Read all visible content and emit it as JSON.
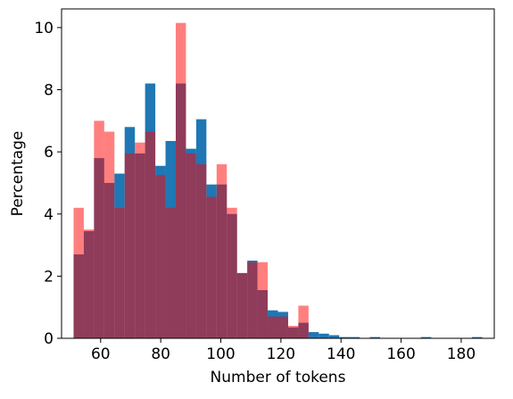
{
  "chart_data": {
    "type": "bar",
    "subtype": "overlapping-histogram",
    "title": "",
    "xlabel": "Number of tokens",
    "ylabel": "Percentage",
    "xlim": [
      47,
      191
    ],
    "ylim": [
      0,
      10.6
    ],
    "xticks": [
      60,
      80,
      100,
      120,
      140,
      160,
      180
    ],
    "yticks": [
      0,
      2,
      4,
      6,
      8,
      10
    ],
    "grid": false,
    "legend": "none",
    "bin_edges": [
      51,
      54.4,
      57.8,
      61.2,
      64.6,
      68,
      71.4,
      74.8,
      78.2,
      81.6,
      85,
      88.4,
      91.8,
      95.2,
      98.6,
      102,
      105.4,
      108.8,
      112.2,
      115.6,
      119,
      122.4,
      125.8,
      129.2,
      132.6,
      136,
      139.4,
      142.8,
      146.2,
      149.6,
      153,
      156.4,
      159.8,
      163.2,
      166.6,
      170,
      173.4,
      176.8,
      180.2,
      183.6,
      187
    ],
    "series": [
      {
        "color": "#1f77b4",
        "opacity": 1.0,
        "values": [
          2.7,
          3.45,
          5.8,
          5.0,
          5.3,
          6.8,
          5.95,
          8.2,
          5.55,
          6.35,
          8.2,
          6.1,
          7.05,
          4.95,
          4.95,
          4.0,
          2.1,
          2.5,
          1.55,
          0.9,
          0.85,
          0.35,
          0.5,
          0.2,
          0.15,
          0.1,
          0.04,
          0.04,
          0.0,
          0.04,
          0.0,
          0.0,
          0.0,
          0.0,
          0.04,
          0.0,
          0.0,
          0.0,
          0.0,
          0.04
        ]
      },
      {
        "color": "#ff0000",
        "opacity": 0.5,
        "values": [
          4.2,
          3.5,
          7.0,
          6.65,
          4.2,
          5.95,
          6.3,
          6.65,
          5.25,
          4.2,
          10.15,
          5.95,
          5.6,
          4.55,
          5.6,
          4.2,
          2.1,
          2.45,
          2.45,
          0.7,
          0.7,
          0.4,
          1.05,
          0.0,
          0.0,
          0.0,
          0.0,
          0.0,
          0.0,
          0.0,
          0.0,
          0.0,
          0.0,
          0.0,
          0.0,
          0.0,
          0.0,
          0.0,
          0.0,
          0.0
        ]
      }
    ]
  }
}
